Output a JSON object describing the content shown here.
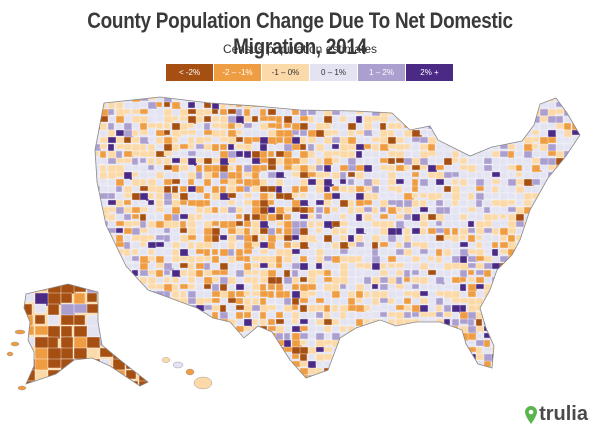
{
  "header": {
    "title": "County Population Change Due To Net Domestic Migration, 2014",
    "subtitle": "Census population estimates"
  },
  "legend": [
    {
      "label": "< -2%",
      "color": "#a64f12",
      "text_color": "#ffffff"
    },
    {
      "label": "-2 – -1%",
      "color": "#ef9d43",
      "text_color": "#ffffff"
    },
    {
      "label": "-1 – 0%",
      "color": "#fcd9a8",
      "text_color": "#333333"
    },
    {
      "label": "0 – 1%",
      "color": "#e4e3f1",
      "text_color": "#333333"
    },
    {
      "label": "1 – 2%",
      "color": "#ab9fd0",
      "text_color": "#ffffff"
    },
    {
      "label": "2% +",
      "color": "#4b2a86",
      "text_color": "#ffffff"
    }
  ],
  "brand": {
    "name": "trulia",
    "icon": "map-pin-icon",
    "color": "#5ab54d"
  }
}
